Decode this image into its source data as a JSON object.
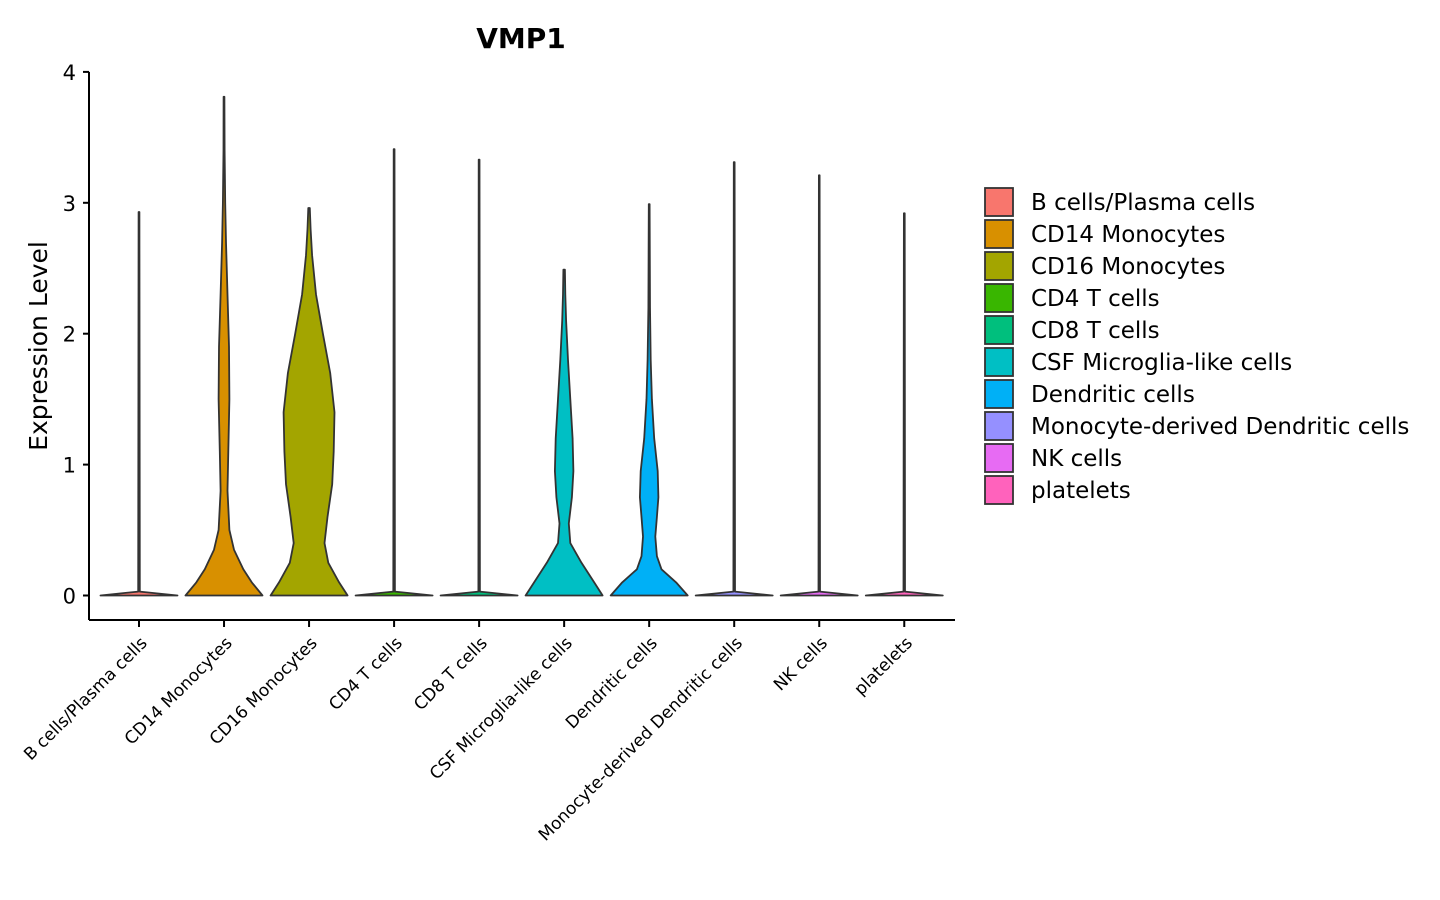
{
  "chart_data": {
    "type": "violin",
    "title": "VMP1",
    "xlabel": "",
    "ylabel": "Expression Level",
    "ylim": [
      -0.18,
      4
    ],
    "yticks": [
      0,
      1,
      2,
      3,
      4
    ],
    "grid": false,
    "legend_position": "right",
    "categories": [
      "B cells/Plasma cells",
      "CD14 Monocytes",
      "CD16 Monocytes",
      "CD4 T cells",
      "CD8 T cells",
      "CSF Microglia-like cells",
      "Dendritic cells",
      "Monocyte-derived Dendritic cells",
      "NK cells",
      "platelets"
    ],
    "colors": [
      "#F8766D",
      "#D89000",
      "#A3A500",
      "#39B600",
      "#00BF7D",
      "#00BFC4",
      "#00B0F6",
      "#9590FF",
      "#E76BF3",
      "#FF62BC"
    ],
    "series": [
      {
        "name": "B cells/Plasma cells",
        "max": 2.93,
        "profile": [
          [
            0,
            1.0
          ],
          [
            0.03,
            0.02
          ],
          [
            2.93,
            0.01
          ]
        ]
      },
      {
        "name": "CD14 Monocytes",
        "max": 3.81,
        "profile": [
          [
            0,
            1.0
          ],
          [
            0.1,
            0.72
          ],
          [
            0.2,
            0.5
          ],
          [
            0.35,
            0.26
          ],
          [
            0.5,
            0.14
          ],
          [
            0.8,
            0.09
          ],
          [
            1.1,
            0.11
          ],
          [
            1.5,
            0.14
          ],
          [
            1.9,
            0.13
          ],
          [
            2.3,
            0.09
          ],
          [
            2.7,
            0.05
          ],
          [
            3.0,
            0.03
          ],
          [
            3.4,
            0.015
          ],
          [
            3.81,
            0.01
          ]
        ]
      },
      {
        "name": "CD16 Monocytes",
        "max": 2.96,
        "profile": [
          [
            0,
            1.0
          ],
          [
            0.1,
            0.78
          ],
          [
            0.25,
            0.5
          ],
          [
            0.4,
            0.4
          ],
          [
            0.6,
            0.48
          ],
          [
            0.85,
            0.6
          ],
          [
            1.1,
            0.64
          ],
          [
            1.4,
            0.66
          ],
          [
            1.7,
            0.55
          ],
          [
            2.0,
            0.36
          ],
          [
            2.3,
            0.18
          ],
          [
            2.6,
            0.08
          ],
          [
            2.8,
            0.04
          ],
          [
            2.96,
            0.02
          ]
        ]
      },
      {
        "name": "CD4 T cells",
        "max": 3.41,
        "profile": [
          [
            0,
            1.0
          ],
          [
            0.03,
            0.02
          ],
          [
            3.41,
            0.01
          ]
        ]
      },
      {
        "name": "CD8 T cells",
        "max": 3.33,
        "profile": [
          [
            0,
            1.0
          ],
          [
            0.03,
            0.02
          ],
          [
            3.33,
            0.01
          ]
        ]
      },
      {
        "name": "CSF Microglia-like cells",
        "max": 2.49,
        "profile": [
          [
            0,
            1.0
          ],
          [
            0.1,
            0.78
          ],
          [
            0.25,
            0.45
          ],
          [
            0.4,
            0.16
          ],
          [
            0.55,
            0.12
          ],
          [
            0.75,
            0.2
          ],
          [
            0.95,
            0.24
          ],
          [
            1.2,
            0.22
          ],
          [
            1.5,
            0.16
          ],
          [
            1.8,
            0.1
          ],
          [
            2.1,
            0.05
          ],
          [
            2.3,
            0.03
          ],
          [
            2.49,
            0.02
          ]
        ]
      },
      {
        "name": "Dendritic cells",
        "max": 2.99,
        "profile": [
          [
            0,
            1.0
          ],
          [
            0.1,
            0.7
          ],
          [
            0.2,
            0.32
          ],
          [
            0.3,
            0.2
          ],
          [
            0.45,
            0.16
          ],
          [
            0.6,
            0.2
          ],
          [
            0.75,
            0.24
          ],
          [
            0.95,
            0.22
          ],
          [
            1.2,
            0.13
          ],
          [
            1.5,
            0.07
          ],
          [
            1.8,
            0.04
          ],
          [
            2.2,
            0.02
          ],
          [
            2.99,
            0.01
          ]
        ]
      },
      {
        "name": "Monocyte-derived Dendritic cells",
        "max": 3.31,
        "profile": [
          [
            0,
            1.0
          ],
          [
            0.03,
            0.02
          ],
          [
            3.31,
            0.01
          ]
        ]
      },
      {
        "name": "NK cells",
        "max": 3.21,
        "profile": [
          [
            0,
            1.0
          ],
          [
            0.03,
            0.02
          ],
          [
            3.21,
            0.01
          ]
        ]
      },
      {
        "name": "platelets",
        "max": 2.92,
        "profile": [
          [
            0,
            1.0
          ],
          [
            0.03,
            0.02
          ],
          [
            2.92,
            0.01
          ]
        ]
      }
    ]
  }
}
